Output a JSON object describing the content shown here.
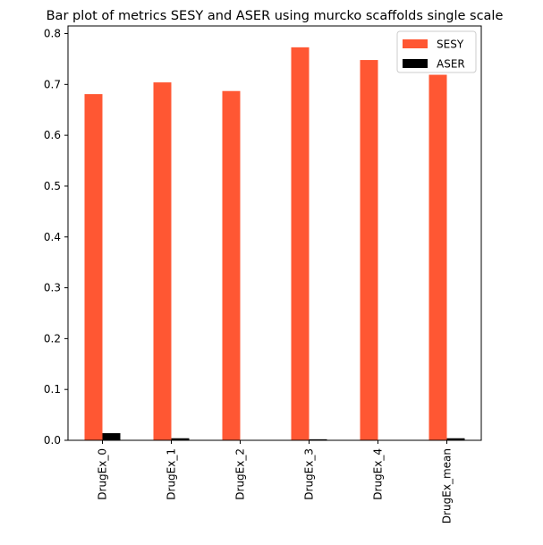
{
  "chart_data": {
    "type": "bar",
    "title": "Bar plot of metrics SESY and ASER using murcko scaffolds single scale",
    "xlabel": "",
    "ylabel": "",
    "categories": [
      "DrugEx_0",
      "DrugEx_1",
      "DrugEx_2",
      "DrugEx_3",
      "DrugEx_4",
      "DrugEx_mean"
    ],
    "series": [
      {
        "name": "SESY",
        "color": "#ff5733",
        "values": [
          0.681,
          0.704,
          0.687,
          0.773,
          0.748,
          0.719
        ]
      },
      {
        "name": "ASER",
        "color": "#000000",
        "values": [
          0.014,
          0.004,
          0.0,
          0.002,
          0.0,
          0.004
        ]
      }
    ],
    "ylim": [
      0,
      0.815
    ],
    "yticks": [
      "0.0",
      "0.1",
      "0.2",
      "0.3",
      "0.4",
      "0.5",
      "0.6",
      "0.7",
      "0.8"
    ],
    "grid": false,
    "legend_position": "top-right"
  }
}
